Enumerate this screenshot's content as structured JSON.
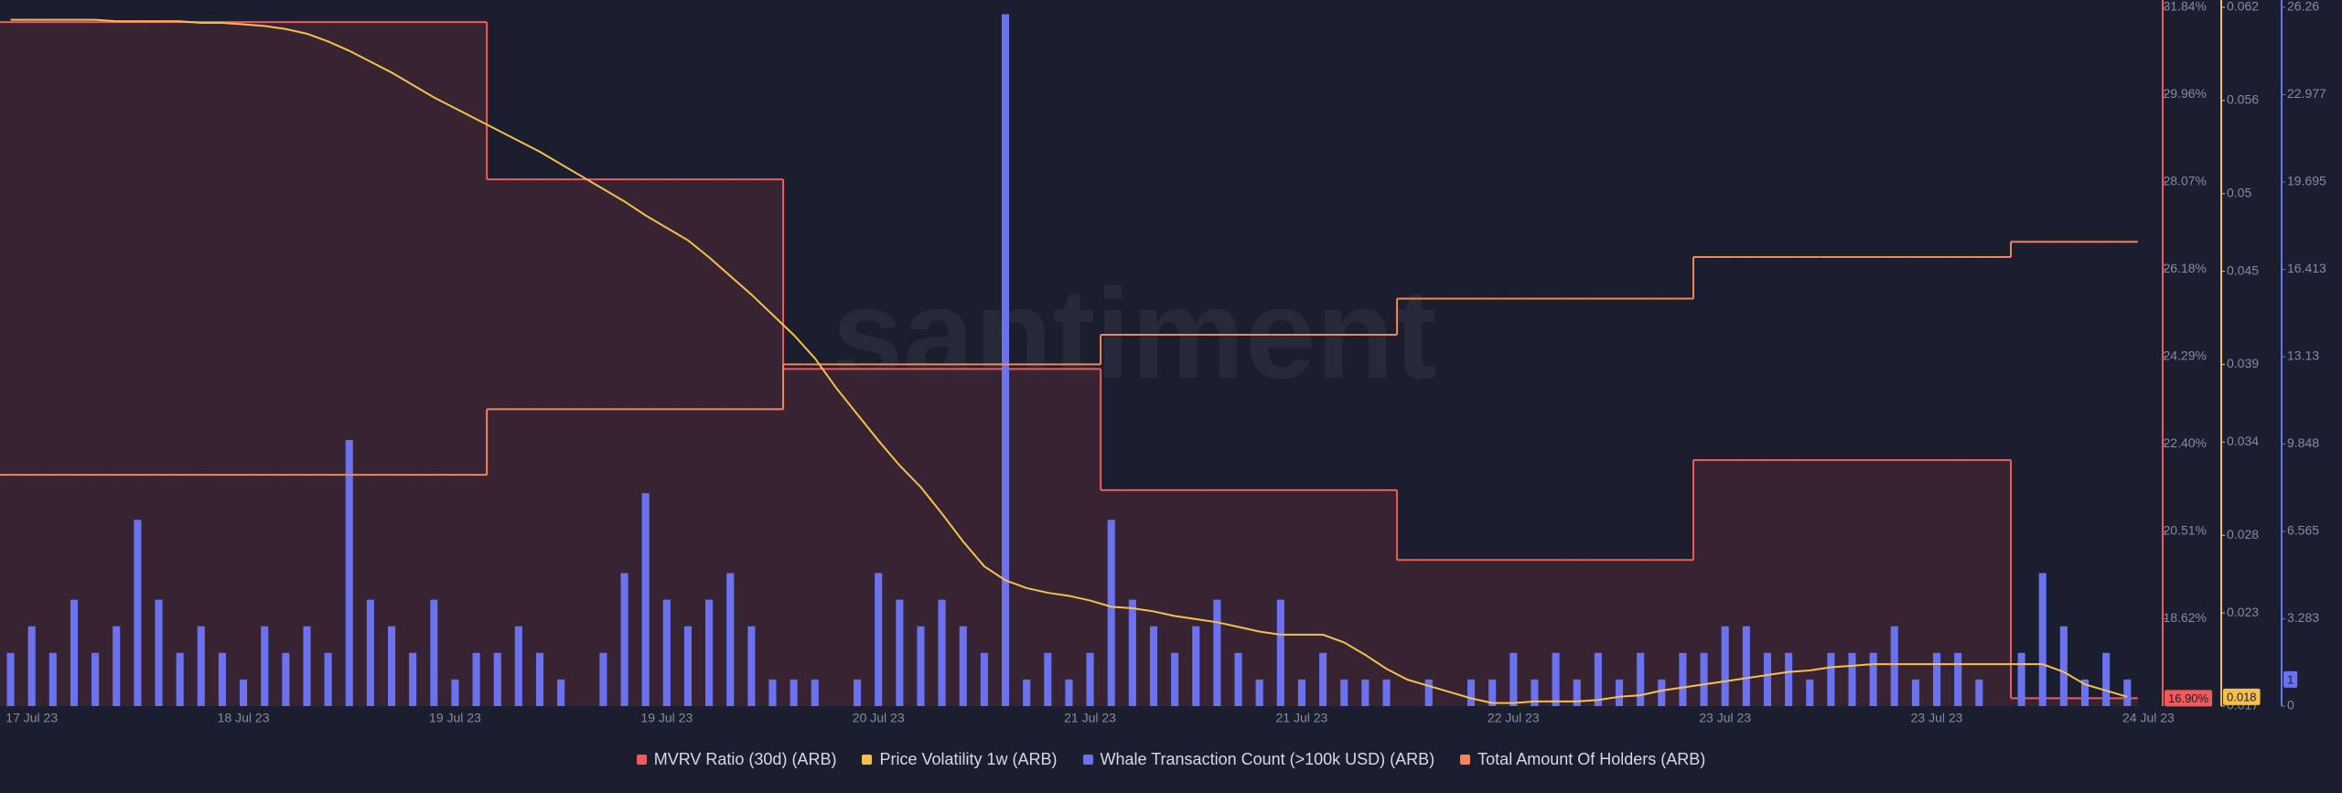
{
  "chart_data": {
    "type": "combo",
    "watermark": "santiment",
    "categories": [
      null,
      "17 Jul 23",
      null,
      null,
      null,
      null,
      null,
      null,
      null,
      null,
      null,
      "18 Jul 23",
      null,
      null,
      null,
      null,
      null,
      null,
      null,
      null,
      null,
      "19 Jul 23",
      null,
      null,
      null,
      null,
      null,
      null,
      null,
      null,
      null,
      "19 Jul 23",
      null,
      null,
      null,
      null,
      null,
      null,
      null,
      null,
      null,
      "20 Jul 23",
      null,
      null,
      null,
      null,
      null,
      null,
      null,
      null,
      null,
      "21 Jul 23",
      null,
      null,
      null,
      null,
      null,
      null,
      null,
      null,
      null,
      "21 Jul 23",
      null,
      null,
      null,
      null,
      null,
      null,
      null,
      null,
      null,
      "22 Jul 23",
      null,
      null,
      null,
      null,
      null,
      null,
      null,
      null,
      null,
      "23 Jul 23",
      null,
      null,
      null,
      null,
      null,
      null,
      null,
      null,
      null,
      "23 Jul 23",
      null,
      null,
      null,
      null,
      null,
      null,
      null,
      null,
      null,
      "24 Jul 23"
    ],
    "ylim": [
      16.73,
      31.84
    ],
    "yticks": [
      {
        "value": 31.84,
        "label": "31.84%"
      },
      {
        "value": 29.96,
        "label": "29.96%"
      },
      {
        "value": 28.07,
        "label": "28.07%"
      },
      {
        "value": 26.18,
        "label": "26.18%"
      },
      {
        "value": 24.29,
        "label": "24.29%"
      },
      {
        "value": 22.4,
        "label": "22.40%"
      },
      {
        "value": 20.51,
        "label": "20.51%"
      },
      {
        "value": 18.62,
        "label": "18.62%"
      }
    ],
    "y2lim": [
      0.017,
      0.062
    ],
    "y2ticks": [
      0.062,
      0.056,
      0.05,
      0.045,
      0.039,
      0.034,
      0.028,
      0.023,
      0.017
    ],
    "y3lim": [
      0,
      26.26
    ],
    "y3ticks": [
      26.26,
      22.977,
      19.695,
      16.413,
      13.13,
      9.848,
      6.565,
      3.283,
      0
    ],
    "series": [
      {
        "name": "MVRV Ratio (30d) (ARB)",
        "color": "#ef5b5b",
        "kind": "step-area",
        "axis": "y",
        "values": [
          31.52,
          31.52,
          31.52,
          31.52,
          31.52,
          31.52,
          31.52,
          31.52,
          31.52,
          31.52,
          31.52,
          31.52,
          31.52,
          31.52,
          31.52,
          31.52,
          31.52,
          31.52,
          31.52,
          31.52,
          31.52,
          31.52,
          31.52,
          28.12,
          28.12,
          28.12,
          28.12,
          28.12,
          28.12,
          28.12,
          28.12,
          28.12,
          28.12,
          28.12,
          28.12,
          28.12,
          28.12,
          24.02,
          24.02,
          24.02,
          24.02,
          24.02,
          24.02,
          24.02,
          24.02,
          24.02,
          24.02,
          24.02,
          24.02,
          24.02,
          24.02,
          24.02,
          21.4,
          21.4,
          21.4,
          21.4,
          21.4,
          21.4,
          21.4,
          21.4,
          21.4,
          21.4,
          21.4,
          21.4,
          21.4,
          21.4,
          19.89,
          19.89,
          19.89,
          19.89,
          19.89,
          19.89,
          19.89,
          19.89,
          19.89,
          19.89,
          19.89,
          19.89,
          19.89,
          19.89,
          22.05,
          22.05,
          22.05,
          22.05,
          22.05,
          22.05,
          22.05,
          22.05,
          22.05,
          22.05,
          22.05,
          22.05,
          22.05,
          22.05,
          22.05,
          16.9,
          16.9,
          16.9,
          16.9,
          16.9,
          16.9,
          null
        ],
        "value_labels": [
          null,
          null,
          null,
          null,
          null,
          null,
          null,
          null,
          null,
          null,
          null,
          null,
          null,
          null,
          null,
          null,
          null,
          null,
          null,
          null,
          null,
          null,
          null,
          null,
          null,
          null,
          null,
          null,
          null,
          null,
          null,
          null,
          null,
          null,
          null,
          null,
          null,
          null,
          null,
          null,
          null,
          null,
          null,
          null,
          null,
          null,
          null,
          null,
          null,
          null,
          null,
          null,
          null,
          null,
          null,
          null,
          null,
          null,
          null,
          null,
          null,
          null,
          null,
          null,
          null,
          null,
          null,
          null,
          null,
          null,
          null,
          null,
          null,
          null,
          null,
          null,
          null,
          null,
          null,
          null,
          null,
          null,
          null,
          null,
          null,
          null,
          null,
          null,
          null,
          null,
          null,
          null,
          null,
          null,
          null,
          null,
          null,
          null,
          null,
          null,
          "16.90%",
          null
        ]
      },
      {
        "name": "Price Volatility 1w (ARB)",
        "color": "#f5c04c",
        "kind": "line",
        "axis": "y2",
        "values": [
          0.0612,
          0.0612,
          0.0612,
          0.0612,
          0.0612,
          0.0611,
          0.0611,
          0.0611,
          0.0611,
          0.061,
          0.061,
          0.0609,
          0.0608,
          0.0606,
          0.0603,
          0.0598,
          0.0592,
          0.0585,
          0.0578,
          0.057,
          0.0562,
          0.0555,
          0.0548,
          0.0541,
          0.0534,
          0.0527,
          0.0519,
          0.0511,
          0.0503,
          0.0495,
          0.0486,
          0.0478,
          0.047,
          0.0459,
          0.0447,
          0.0435,
          0.0422,
          0.0409,
          0.0394,
          0.0375,
          0.0358,
          0.0341,
          0.0325,
          0.0311,
          0.0294,
          0.0276,
          0.026,
          0.0251,
          0.0246,
          0.0243,
          0.0241,
          0.0238,
          0.0234,
          0.0233,
          0.0231,
          0.0228,
          0.0226,
          0.0224,
          0.0221,
          0.0218,
          0.0216,
          0.0216,
          0.0216,
          0.0211,
          0.0203,
          0.0194,
          0.0187,
          0.0183,
          0.0179,
          0.0175,
          0.0172,
          0.0172,
          0.0173,
          0.0173,
          0.0173,
          0.0174,
          0.0176,
          0.0177,
          0.018,
          0.0182,
          0.0184,
          0.0186,
          0.0188,
          0.019,
          0.0192,
          0.0193,
          0.0195,
          0.0196,
          0.0197,
          0.0197,
          0.0197,
          0.0197,
          0.0197,
          0.0197,
          0.0197,
          0.0197,
          0.0197,
          0.0192,
          0.0184,
          0.018,
          0.0176,
          null
        ],
        "value_labels": [
          null,
          null,
          null,
          null,
          null,
          null,
          null,
          null,
          null,
          null,
          null,
          null,
          null,
          null,
          null,
          null,
          null,
          null,
          null,
          null,
          null,
          null,
          null,
          null,
          null,
          null,
          null,
          null,
          null,
          null,
          null,
          null,
          null,
          null,
          null,
          null,
          null,
          null,
          null,
          null,
          null,
          null,
          null,
          null,
          null,
          null,
          null,
          null,
          null,
          null,
          null,
          null,
          null,
          null,
          null,
          null,
          null,
          null,
          null,
          null,
          null,
          null,
          null,
          null,
          null,
          null,
          null,
          null,
          null,
          null,
          null,
          null,
          null,
          null,
          null,
          null,
          null,
          null,
          null,
          null,
          null,
          null,
          null,
          null,
          null,
          null,
          null,
          null,
          null,
          null,
          null,
          null,
          null,
          null,
          null,
          null,
          null,
          null,
          null,
          null,
          "0.018",
          null
        ]
      },
      {
        "name": "Whale Transaction Count (>100k USD) (ARB)",
        "color": "#6a72ee",
        "kind": "bar",
        "axis": "y3",
        "values": [
          2,
          3,
          2,
          4,
          2,
          3,
          7,
          4,
          2,
          3,
          2,
          1,
          3,
          2,
          3,
          2,
          10,
          4,
          3,
          2,
          4,
          1,
          2,
          2,
          3,
          2,
          1,
          0,
          2,
          5,
          8,
          4,
          3,
          4,
          5,
          3,
          1,
          1,
          1,
          0,
          1,
          5,
          4,
          3,
          4,
          3,
          2,
          26,
          1,
          2,
          1,
          2,
          7,
          4,
          3,
          2,
          3,
          4,
          2,
          1,
          4,
          1,
          2,
          1,
          1,
          1,
          0,
          1,
          0,
          1,
          1,
          2,
          1,
          2,
          1,
          2,
          1,
          2,
          1,
          2,
          2,
          3,
          3,
          2,
          2,
          1,
          2,
          2,
          2,
          3,
          1,
          2,
          2,
          1,
          0,
          2,
          5,
          3,
          1,
          2,
          1,
          null
        ]
      },
      {
        "name": "Total Amount Of Holders (ARB)",
        "color": "#f2875c",
        "kind": "step",
        "axis": "y",
        "values": [
          21.73,
          21.73,
          21.73,
          21.73,
          21.73,
          21.73,
          21.73,
          21.73,
          21.73,
          21.73,
          21.73,
          21.73,
          21.73,
          21.73,
          21.73,
          21.73,
          21.73,
          21.73,
          21.73,
          21.73,
          21.73,
          21.73,
          21.73,
          23.15,
          23.15,
          23.15,
          23.15,
          23.15,
          23.15,
          23.15,
          23.15,
          23.15,
          23.15,
          23.15,
          23.15,
          23.15,
          23.15,
          24.12,
          24.12,
          24.12,
          24.12,
          24.12,
          24.12,
          24.12,
          24.12,
          24.12,
          24.12,
          24.12,
          24.12,
          24.12,
          24.12,
          24.12,
          24.76,
          24.76,
          24.76,
          24.76,
          24.76,
          24.76,
          24.76,
          24.76,
          24.76,
          24.76,
          24.76,
          24.76,
          24.76,
          24.76,
          25.54,
          25.54,
          25.54,
          25.54,
          25.54,
          25.54,
          25.54,
          25.54,
          25.54,
          25.54,
          25.54,
          25.54,
          25.54,
          25.54,
          26.44,
          26.44,
          26.44,
          26.44,
          26.44,
          26.44,
          26.44,
          26.44,
          26.44,
          26.44,
          26.44,
          26.44,
          26.44,
          26.44,
          26.44,
          26.77,
          26.77,
          26.77,
          26.77,
          26.77,
          26.77,
          null
        ]
      }
    ]
  }
}
